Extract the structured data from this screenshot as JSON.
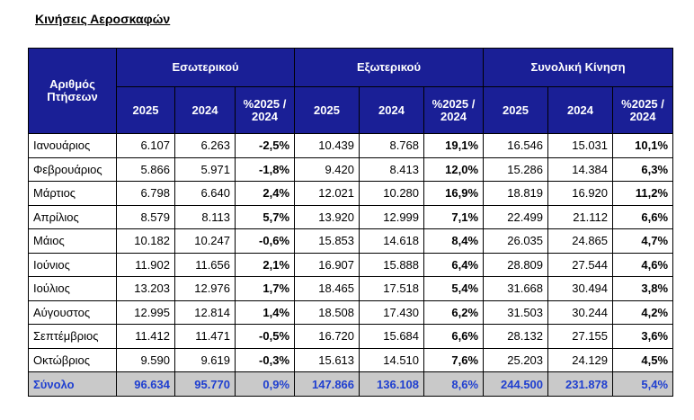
{
  "title": "Κινήσεις Αεροσκαφών",
  "table": {
    "corner_header": "Αριθμός Πτήσεων",
    "groups": [
      "Εσωτερικού",
      "Εξωτερικού",
      "Συνολική Κίνηση"
    ],
    "subheaders": [
      "2025",
      "2024",
      "%2025 / 2024"
    ],
    "rows": [
      {
        "month": "Ιανουάριος",
        "cells": [
          "6.107",
          "6.263",
          "-2,5%",
          "10.439",
          "8.768",
          "19,1%",
          "16.546",
          "15.031",
          "10,1%"
        ]
      },
      {
        "month": "Φεβρουάριος",
        "cells": [
          "5.866",
          "5.971",
          "-1,8%",
          "9.420",
          "8.413",
          "12,0%",
          "15.286",
          "14.384",
          "6,3%"
        ]
      },
      {
        "month": "Μάρτιος",
        "cells": [
          "6.798",
          "6.640",
          "2,4%",
          "12.021",
          "10.280",
          "16,9%",
          "18.819",
          "16.920",
          "11,2%"
        ]
      },
      {
        "month": "Απρίλιος",
        "cells": [
          "8.579",
          "8.113",
          "5,7%",
          "13.920",
          "12.999",
          "7,1%",
          "22.499",
          "21.112",
          "6,6%"
        ]
      },
      {
        "month": "Μάιος",
        "cells": [
          "10.182",
          "10.247",
          "-0,6%",
          "15.853",
          "14.618",
          "8,4%",
          "26.035",
          "24.865",
          "4,7%"
        ]
      },
      {
        "month": "Ιούνιος",
        "cells": [
          "11.902",
          "11.656",
          "2,1%",
          "16.907",
          "15.888",
          "6,4%",
          "28.809",
          "27.544",
          "4,6%"
        ]
      },
      {
        "month": "Ιούλιος",
        "cells": [
          "13.203",
          "12.976",
          "1,7%",
          "18.465",
          "17.518",
          "5,4%",
          "31.668",
          "30.494",
          "3,8%"
        ]
      },
      {
        "month": "Αύγουστος",
        "cells": [
          "12.995",
          "12.814",
          "1,4%",
          "18.508",
          "17.430",
          "6,2%",
          "31.503",
          "30.244",
          "4,2%"
        ]
      },
      {
        "month": "Σεπτέμβριος",
        "cells": [
          "11.412",
          "11.471",
          "-0,5%",
          "16.720",
          "15.684",
          "6,6%",
          "28.132",
          "27.155",
          "3,6%"
        ]
      },
      {
        "month": "Οκτώβριος",
        "cells": [
          "9.590",
          "9.619",
          "-0,3%",
          "15.613",
          "14.510",
          "7,6%",
          "25.203",
          "24.129",
          "4,5%"
        ]
      }
    ],
    "total": {
      "month": "Σύνολο",
      "cells": [
        "96.634",
        "95.770",
        "0,9%",
        "147.866",
        "136.108",
        "8,6%",
        "244.500",
        "231.878",
        "5,4%"
      ]
    }
  },
  "colors": {
    "header_bg": "#1a1f96",
    "total_bg": "#c9c9c9",
    "total_text": "#1f3fd0"
  }
}
